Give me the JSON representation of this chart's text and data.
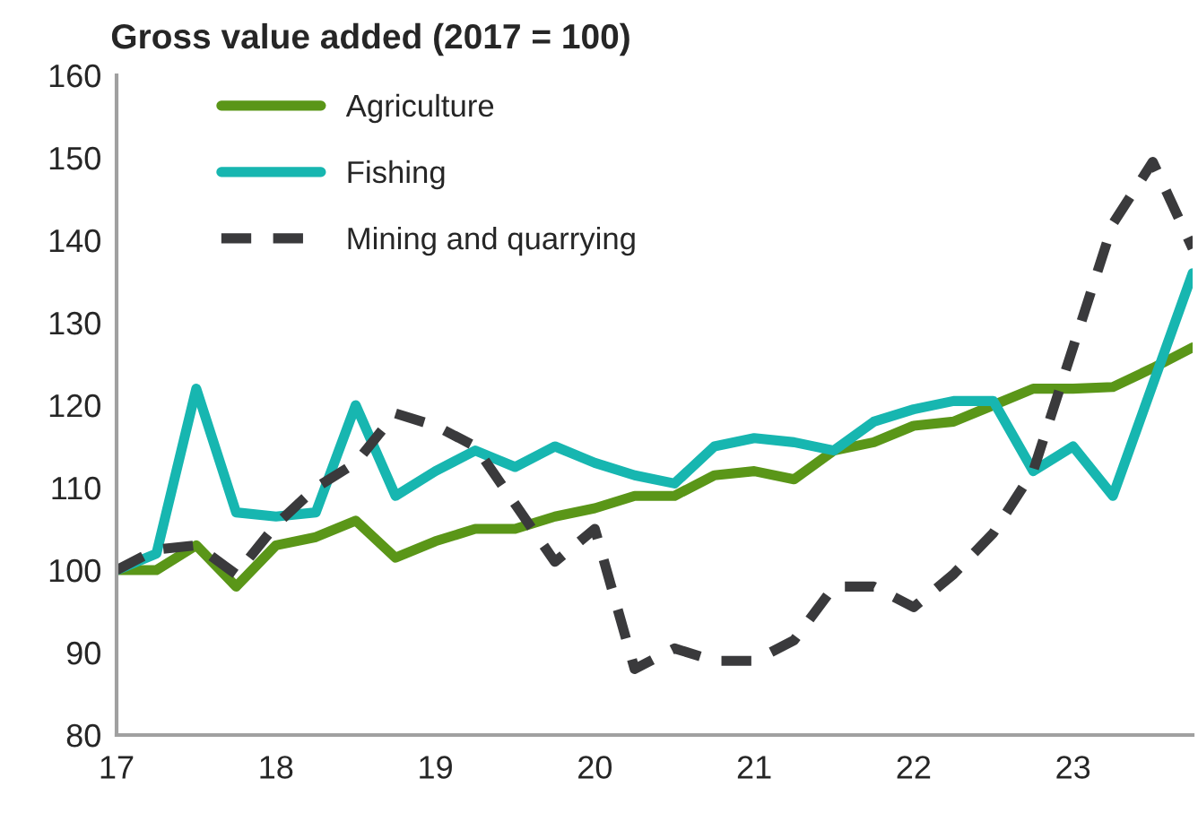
{
  "chart_data": {
    "type": "line",
    "title": "Gross value added (2017 = 100)",
    "x": [
      17,
      17.25,
      17.5,
      17.75,
      18,
      18.25,
      18.5,
      18.75,
      19,
      19.25,
      19.5,
      19.75,
      20,
      20.25,
      20.5,
      20.75,
      21,
      21.25,
      21.5,
      21.75,
      22,
      22.25,
      22.5,
      22.75,
      23,
      23.25,
      23.5,
      23.75
    ],
    "series": [
      {
        "name": "Agriculture",
        "color": "#5a9618",
        "line_style": "solid",
        "values": [
          100,
          100,
          103,
          98,
          103,
          104,
          106,
          101.5,
          103.5,
          105,
          105,
          106.5,
          107.5,
          109,
          109,
          111.5,
          112,
          111,
          114.5,
          115.5,
          117.5,
          118,
          120,
          122,
          122,
          122.2,
          124.5,
          127
        ]
      },
      {
        "name": "Fishing",
        "color": "#17b6b0",
        "line_style": "solid",
        "values": [
          100,
          102,
          122,
          107,
          106.5,
          107,
          120,
          109,
          112,
          114.5,
          112.5,
          115,
          113,
          111.5,
          110.5,
          115,
          116,
          115.5,
          114.5,
          118,
          119.5,
          120.5,
          120.5,
          112,
          115,
          109,
          122.5,
          136
        ]
      },
      {
        "name": "Mining and quarrying",
        "color": "#3a3a3c",
        "line_style": "dashed",
        "values": [
          100,
          102.5,
          103,
          99.5,
          105.5,
          110,
          113,
          119,
          117.5,
          115,
          108,
          101,
          105,
          88,
          90.5,
          89,
          89,
          91.5,
          98,
          98,
          95.5,
          99.5,
          104.5,
          112,
          127,
          142,
          149.5,
          139
        ]
      }
    ],
    "xlim": [
      17,
      23.75
    ],
    "xticks": [
      17,
      18,
      19,
      20,
      21,
      22,
      23
    ],
    "ylim": [
      80,
      160
    ],
    "yticks": [
      80,
      90,
      100,
      110,
      120,
      130,
      140,
      150,
      160
    ],
    "grid": false,
    "legend": "top left",
    "marker": "none"
  }
}
